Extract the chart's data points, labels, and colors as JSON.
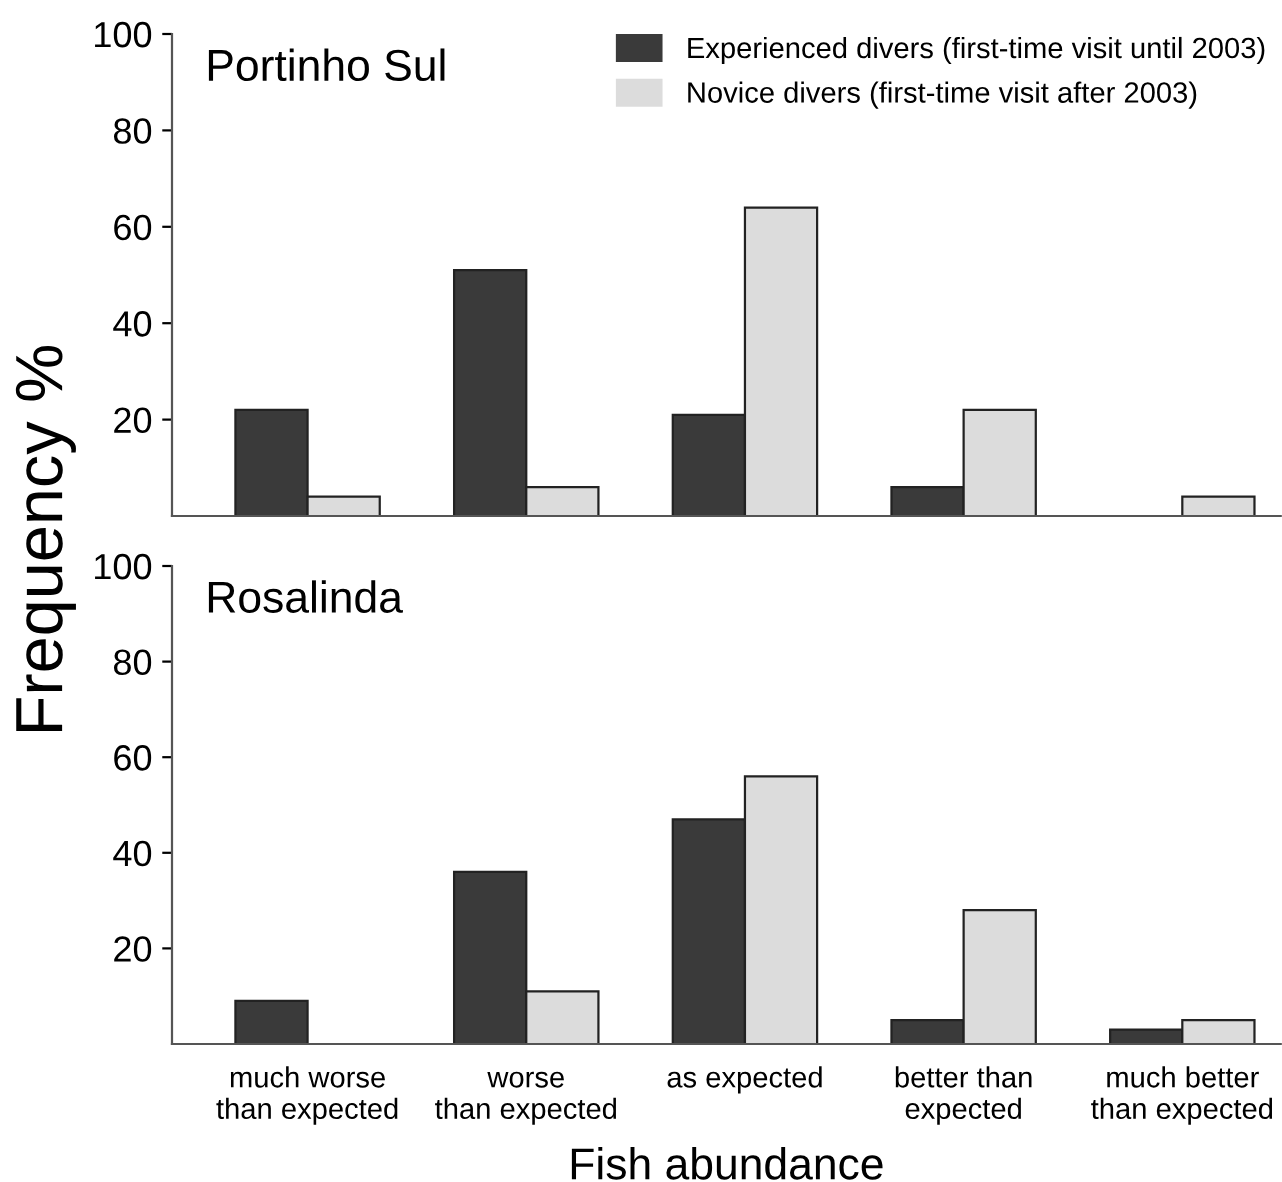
{
  "chart_data": [
    {
      "type": "bar",
      "title": "Portinho Sul",
      "ylabel": "Frequency %",
      "categories": [
        null,
        null,
        null,
        null,
        null
      ],
      "tick_labels": "y",
      "ylim": [
        0,
        100
      ],
      "yticks": [
        20,
        40,
        60,
        80,
        100
      ],
      "legend": "top right",
      "grid": false,
      "series": [
        {
          "name": "Experienced divers (first-time visit until 2003)",
          "color": "#3a3a3a",
          "values": [
            22,
            51,
            21,
            6,
            0
          ]
        },
        {
          "name": "Novice divers (first-time visit after 2003)",
          "color": "#dcdcdc",
          "values": [
            4,
            6,
            64,
            22,
            4
          ]
        }
      ]
    },
    {
      "type": "bar",
      "title": "Rosalinda",
      "xlabel": "Fish abundance",
      "categories": [
        "much worse\nthan expected",
        "worse\nthan expected",
        "as expected",
        "better than\nexpected",
        "much better\nthan expected"
      ],
      "ylim": [
        0,
        100
      ],
      "yticks": [
        20,
        40,
        60,
        80,
        100
      ],
      "grid": false,
      "series": [
        {
          "color": "#3a3a3a",
          "values": [
            9,
            36,
            47,
            5,
            3
          ]
        },
        {
          "color": "#dcdcdc",
          "values": [
            0,
            11,
            56,
            28,
            5
          ]
        }
      ]
    }
  ]
}
